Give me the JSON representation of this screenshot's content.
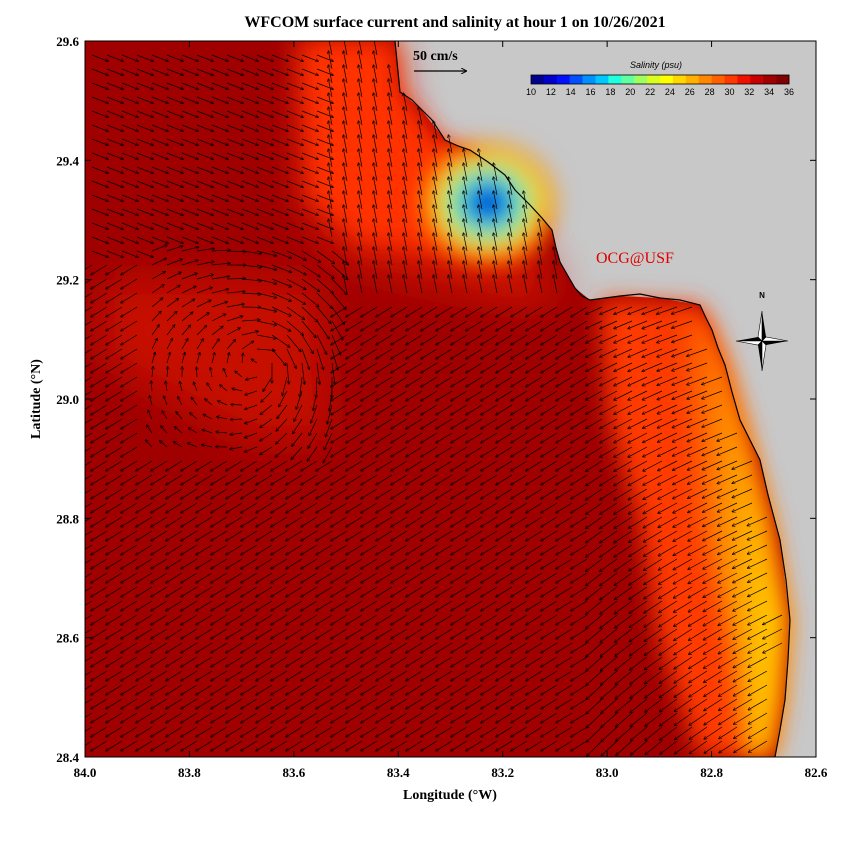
{
  "title": "WFCOM surface current and salinity at hour 1 on 10/26/2021",
  "watermark": "OCG@USF",
  "scale_label": "50 cm/s",
  "compass_label": "N",
  "axes": {
    "xlabel": "Longitude (°W)",
    "ylabel": "Latitude (°N)",
    "x_ticks": [
      "84.0",
      "83.8",
      "83.6",
      "83.4",
      "83.2",
      "83.0",
      "82.8",
      "82.6"
    ],
    "y_ticks": [
      "29.6",
      "29.4",
      "29.2",
      "29.0",
      "28.8",
      "28.6",
      "28.4"
    ],
    "xlim": [
      84.0,
      82.6
    ],
    "ylim": [
      28.4,
      29.6
    ]
  },
  "colorbar": {
    "title": "Salinity (psu)",
    "ticks": [
      "10",
      "12",
      "14",
      "16",
      "18",
      "20",
      "22",
      "24",
      "26",
      "28",
      "30",
      "32",
      "34",
      "36"
    ],
    "range": [
      10,
      36
    ]
  },
  "colors": {
    "land": "#c8c8c8",
    "deep_salinity": "#a00000",
    "watermark": "#e00000"
  }
}
